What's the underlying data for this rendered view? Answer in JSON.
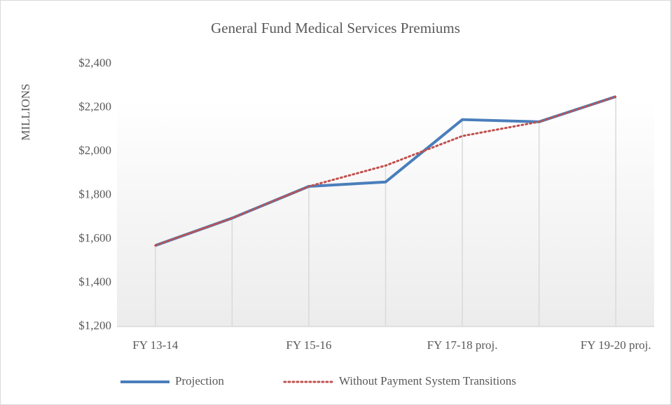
{
  "chart_data": {
    "type": "line",
    "title": "General Fund Medical Services Premiums",
    "y_axis_label": "MILLIONS",
    "categories": [
      "FY 13-14",
      null,
      "FY 15-16",
      null,
      "FY 17-18 proj.",
      null,
      "FY 19-20 proj."
    ],
    "series": [
      {
        "name": "Projection",
        "color": "#4a7ebb",
        "style": "solid",
        "values": [
          1570,
          1695,
          1840,
          1860,
          2145,
          2135,
          2250
        ]
      },
      {
        "name": "Without Payment System Transitions",
        "color": "#c0504d",
        "style": "dotted",
        "values": [
          1570,
          1695,
          1840,
          1935,
          2070,
          2135,
          2250
        ]
      }
    ],
    "ylim": [
      1200,
      2400
    ],
    "yticks": [
      {
        "value": 1200,
        "label": "$1,200"
      },
      {
        "value": 1400,
        "label": "$1,400"
      },
      {
        "value": 1600,
        "label": "$1,600"
      },
      {
        "value": 1800,
        "label": "$1,800"
      },
      {
        "value": 2000,
        "label": "$2,000"
      },
      {
        "value": 2200,
        "label": "$2,200"
      },
      {
        "value": 2400,
        "label": "$2,400"
      }
    ],
    "drop_lines": true,
    "legend": "bottom"
  }
}
